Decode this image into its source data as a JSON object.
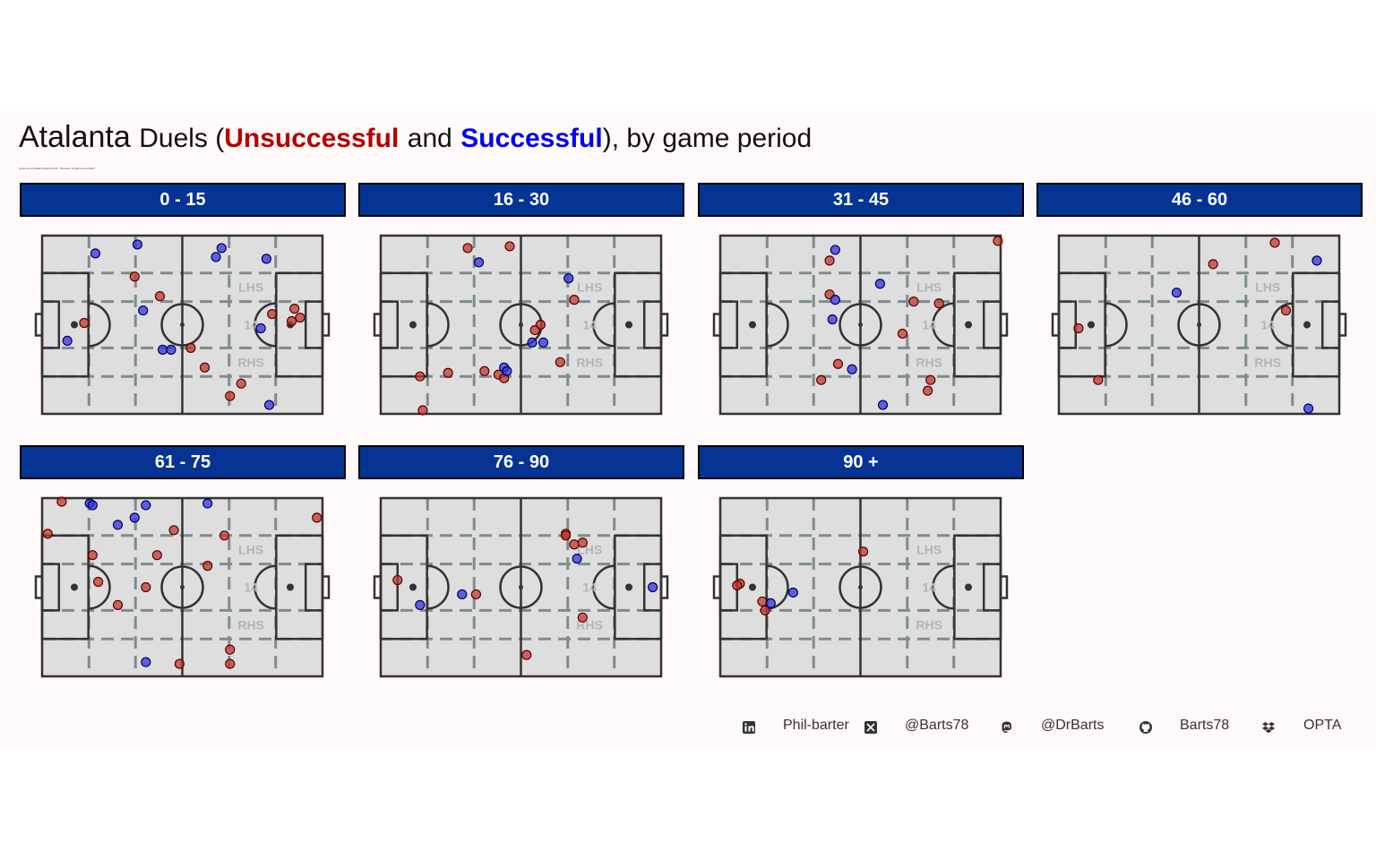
{
  "title": {
    "team": "Atalanta",
    "word_duels": "Duels (",
    "unsuccessful": "Unsuccessful",
    "and": "and",
    "successful": "Successful",
    "tail": "), by game period",
    "subtitle": "Juventus vs Atalanta 2023-11-26 · Direction of play Left to Right"
  },
  "pitch_labels": {
    "lhs": "LHS",
    "center": "14",
    "rhs": "RHS"
  },
  "colors": {
    "unsuccessful": "#c0392b",
    "successful": "#3333dd",
    "strip": "#053494"
  },
  "footer": [
    {
      "icon": "linkedin-icon",
      "text": "Phil-barter"
    },
    {
      "icon": "x-twitter-icon",
      "text": "@Barts78"
    },
    {
      "icon": "mastodon-icon",
      "text": "@DrBarts"
    },
    {
      "icon": "github-icon",
      "text": "Barts78"
    },
    {
      "icon": "dropbox-icon",
      "text": "OPTA"
    }
  ],
  "chart_data": {
    "type": "scatter",
    "x_axis": "pitch length (0-100, attacking left to right)",
    "y_axis": "pitch width (0-100, top = left hand side)",
    "xlim": [
      0,
      100
    ],
    "ylim": [
      0,
      100
    ],
    "panels": [
      {
        "label": "0 - 15",
        "unsuccessful": [
          [
            15,
            51
          ],
          [
            33,
            77
          ],
          [
            42,
            66
          ],
          [
            53,
            37
          ],
          [
            58,
            26
          ],
          [
            67,
            10
          ],
          [
            71,
            17
          ],
          [
            82,
            56
          ],
          [
            90,
            59
          ],
          [
            89,
            52
          ],
          [
            92,
            54
          ]
        ],
        "successful": [
          [
            19,
            90
          ],
          [
            34,
            95
          ],
          [
            36,
            58
          ],
          [
            43,
            36
          ],
          [
            46,
            36
          ],
          [
            62,
            88
          ],
          [
            64,
            93
          ],
          [
            80,
            87
          ],
          [
            78,
            48
          ],
          [
            81,
            5
          ],
          [
            9,
            41
          ]
        ]
      },
      {
        "label": "16 - 30",
        "unsuccessful": [
          [
            31,
            93
          ],
          [
            46,
            94
          ],
          [
            14,
            21
          ],
          [
            24,
            23
          ],
          [
            15,
            2
          ],
          [
            37,
            24
          ],
          [
            42,
            22
          ],
          [
            44,
            20
          ],
          [
            57,
            50
          ],
          [
            55,
            47
          ],
          [
            69,
            64
          ],
          [
            64,
            29
          ]
        ],
        "successful": [
          [
            35,
            85
          ],
          [
            44,
            26
          ],
          [
            45,
            24
          ],
          [
            54,
            40
          ],
          [
            67,
            76
          ],
          [
            58,
            40
          ]
        ]
      },
      {
        "label": "31 - 45",
        "unsuccessful": [
          [
            39,
            86
          ],
          [
            39,
            67
          ],
          [
            42,
            28
          ],
          [
            36,
            19
          ],
          [
            65,
            45
          ],
          [
            69,
            63
          ],
          [
            78,
            62
          ],
          [
            74,
            13
          ],
          [
            75,
            19
          ],
          [
            99,
            97
          ]
        ],
        "successful": [
          [
            41,
            92
          ],
          [
            41,
            64
          ],
          [
            40,
            53
          ],
          [
            57,
            73
          ],
          [
            47,
            25
          ],
          [
            58,
            5
          ]
        ]
      },
      {
        "label": "46 - 60",
        "unsuccessful": [
          [
            7,
            48
          ],
          [
            14,
            19
          ],
          [
            77,
            96
          ],
          [
            55,
            84
          ],
          [
            81,
            58
          ]
        ],
        "successful": [
          [
            42,
            68
          ],
          [
            92,
            86
          ],
          [
            89,
            3
          ]
        ]
      },
      {
        "label": "61 - 75",
        "unsuccessful": [
          [
            7,
            98
          ],
          [
            2,
            80
          ],
          [
            18,
            68
          ],
          [
            20,
            53
          ],
          [
            27,
            40
          ],
          [
            37,
            50
          ],
          [
            41,
            68
          ],
          [
            47,
            82
          ],
          [
            59,
            62
          ],
          [
            65,
            79
          ],
          [
            67,
            15
          ],
          [
            67,
            7
          ],
          [
            98,
            89
          ],
          [
            49,
            7
          ]
        ],
        "successful": [
          [
            17,
            97
          ],
          [
            18,
            96
          ],
          [
            27,
            85
          ],
          [
            33,
            89
          ],
          [
            37,
            96
          ],
          [
            59,
            97
          ],
          [
            37,
            8
          ]
        ]
      },
      {
        "label": "76 - 90",
        "unsuccessful": [
          [
            6,
            54
          ],
          [
            34,
            46
          ],
          [
            66,
            80
          ],
          [
            66,
            79
          ],
          [
            69,
            74
          ],
          [
            72,
            75
          ],
          [
            72,
            33
          ],
          [
            52,
            12
          ]
        ],
        "successful": [
          [
            14,
            40
          ],
          [
            29,
            46
          ],
          [
            70,
            66
          ],
          [
            97,
            50
          ]
        ]
      },
      {
        "label": "90 +",
        "unsuccessful": [
          [
            7,
            52
          ],
          [
            6,
            51
          ],
          [
            15,
            42
          ],
          [
            16,
            37
          ],
          [
            51,
            70
          ]
        ],
        "successful": [
          [
            18,
            41
          ],
          [
            26,
            47
          ]
        ]
      }
    ]
  }
}
